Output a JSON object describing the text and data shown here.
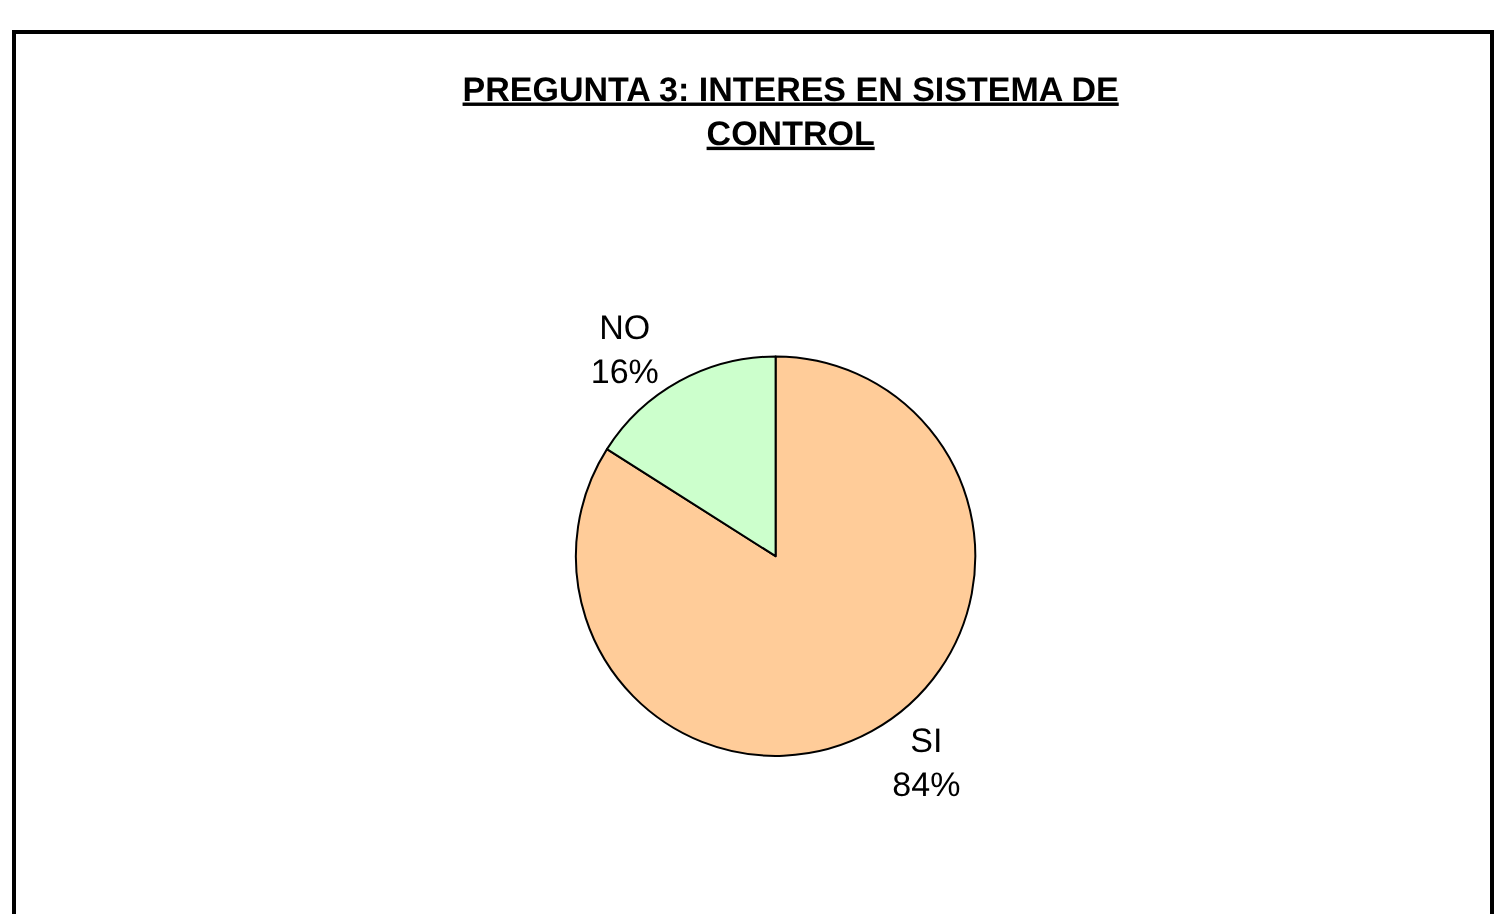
{
  "chart_data": {
    "type": "pie",
    "title": "PREGUNTA 3: INTERES EN SISTEMA DE CONTROL",
    "categories": [
      "SI",
      "NO"
    ],
    "values": [
      84,
      16
    ],
    "value_labels": [
      "84%",
      "16%"
    ],
    "colors": [
      "#ffcc99",
      "#ccffcc"
    ],
    "legend": false
  }
}
